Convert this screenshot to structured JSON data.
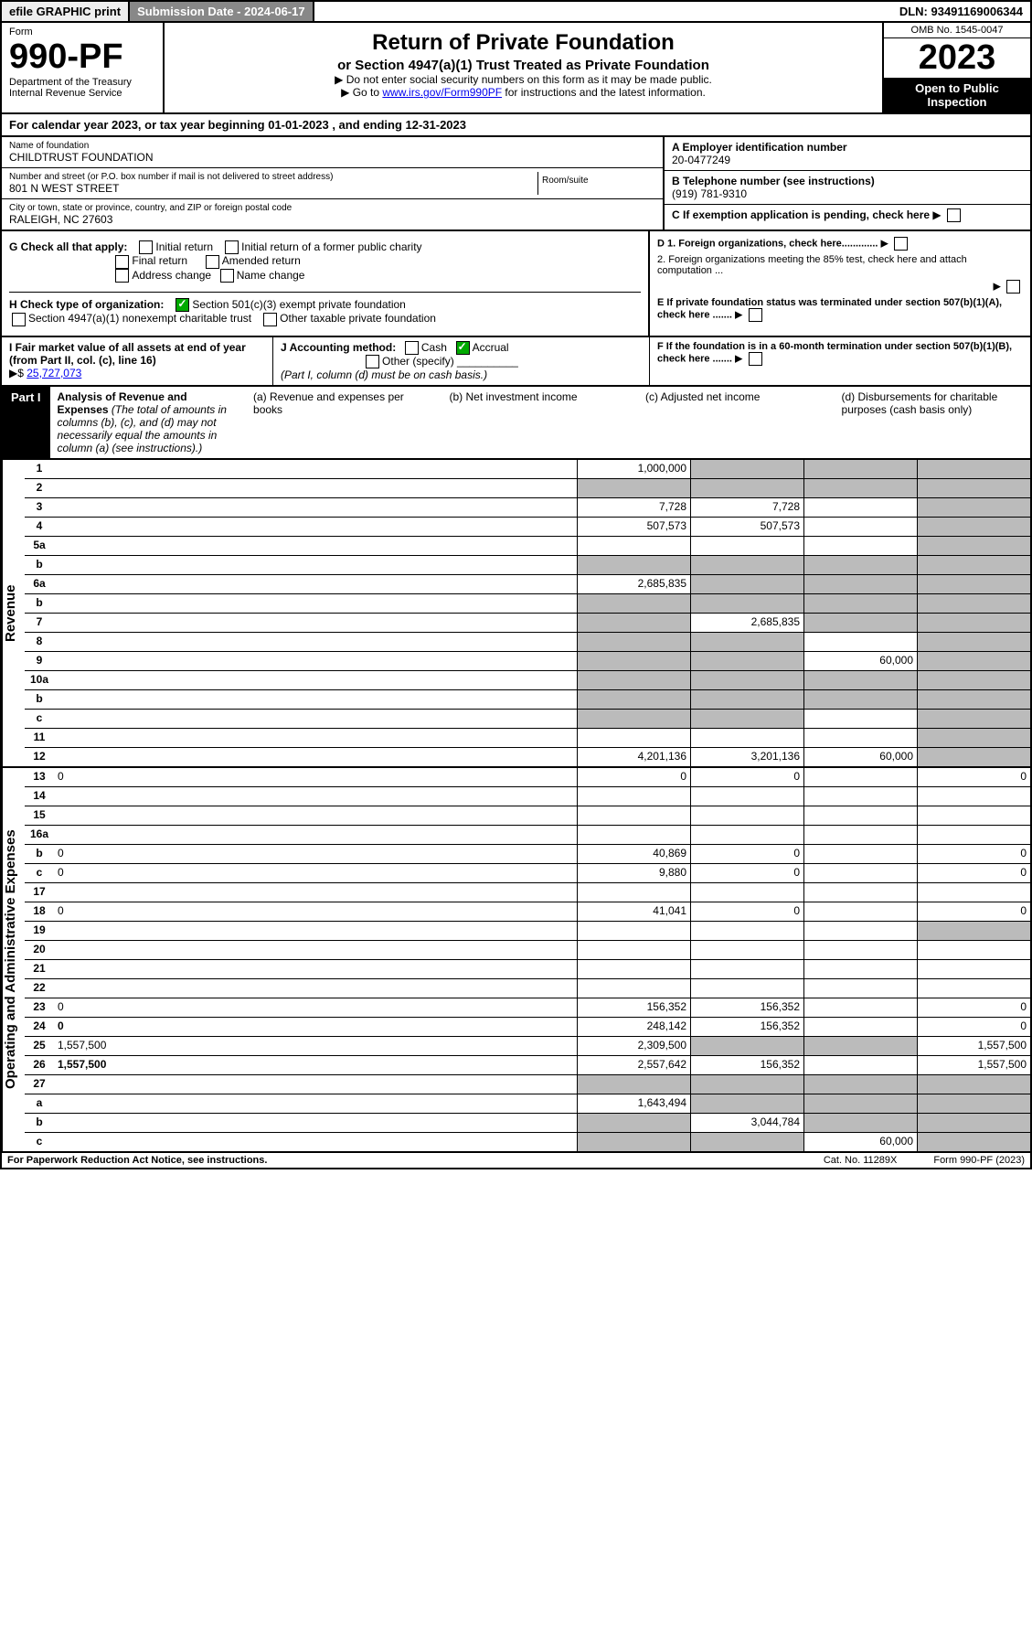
{
  "top": {
    "efile": "efile GRAPHIC print",
    "subdate": "Submission Date - 2024-06-17",
    "dln": "DLN: 93491169006344"
  },
  "header": {
    "form": "Form",
    "number": "990-PF",
    "dept": "Department of the Treasury",
    "irs": "Internal Revenue Service",
    "title": "Return of Private Foundation",
    "subtitle": "or Section 4947(a)(1) Trust Treated as Private Foundation",
    "note1": "▶ Do not enter social security numbers on this form as it may be made public.",
    "note2": "▶ Go to ",
    "link": "www.irs.gov/Form990PF",
    "note3": " for instructions and the latest information.",
    "omb": "OMB No. 1545-0047",
    "year": "2023",
    "open": "Open to Public Inspection"
  },
  "cal": "For calendar year 2023, or tax year beginning 01-01-2023                        , and ending 12-31-2023",
  "addr": {
    "name_lab": "Name of foundation",
    "name": "CHILDTRUST FOUNDATION",
    "street_lab": "Number and street (or P.O. box number if mail is not delivered to street address)",
    "street": "801 N WEST STREET",
    "room_lab": "Room/suite",
    "city_lab": "City or town, state or province, country, and ZIP or foreign postal code",
    "city": "RALEIGH, NC  27603"
  },
  "ein": {
    "a": "A Employer identification number",
    "a_val": "20-0477249",
    "b": "B Telephone number (see instructions)",
    "b_val": "(919) 781-9310",
    "c": "C If exemption application is pending, check here",
    "d1": "D 1. Foreign organizations, check here.............",
    "d2": "2. Foreign organizations meeting the 85% test, check here and attach computation ...",
    "e": "E  If private foundation status was terminated under section 507(b)(1)(A), check here .......",
    "f": "F  If the foundation is in a 60-month termination under section 507(b)(1)(B), check here ......."
  },
  "g": {
    "lab": "G Check all that apply:",
    "o1": "Initial return",
    "o2": "Initial return of a former public charity",
    "o3": "Final return",
    "o4": "Amended return",
    "o5": "Address change",
    "o6": "Name change"
  },
  "h": {
    "lab": "H Check type of organization:",
    "o1": "Section 501(c)(3) exempt private foundation",
    "o2": "Section 4947(a)(1) nonexempt charitable trust",
    "o3": "Other taxable private foundation"
  },
  "i": {
    "lab": "I Fair market value of all assets at end of year (from Part II, col. (c), line 16)",
    "arrow": "▶$",
    "val": "25,727,073"
  },
  "j": {
    "lab": "J Accounting method:",
    "o1": "Cash",
    "o2": "Accrual",
    "o3": "Other (specify)",
    "note": "(Part I, column (d) must be on cash basis.)"
  },
  "part1": {
    "lbl": "Part I",
    "title": "Analysis of Revenue and Expenses",
    "sub": " (The total of amounts in columns (b), (c), and (d) may not necessarily equal the amounts in column (a) (see instructions).)",
    "cols": {
      "a": "(a)   Revenue and expenses per books",
      "b": "(b)   Net investment income",
      "c": "(c)   Adjusted net income",
      "d": "(d)   Disbursements for charitable purposes (cash basis only)"
    }
  },
  "rev_rows": [
    {
      "n": "1",
      "d": "",
      "a": "1,000,000",
      "b": "",
      "c": "",
      "ga": false,
      "gb": true,
      "gc": true,
      "gd": true
    },
    {
      "n": "2",
      "d": "",
      "a": "",
      "b": "",
      "c": "",
      "ga": true,
      "gb": true,
      "gc": true,
      "gd": true
    },
    {
      "n": "3",
      "d": "",
      "a": "7,728",
      "b": "7,728",
      "c": "",
      "ga": false,
      "gb": false,
      "gc": false,
      "gd": true
    },
    {
      "n": "4",
      "d": "",
      "a": "507,573",
      "b": "507,573",
      "c": "",
      "ga": false,
      "gb": false,
      "gc": false,
      "gd": true
    },
    {
      "n": "5a",
      "d": "",
      "a": "",
      "b": "",
      "c": "",
      "ga": false,
      "gb": false,
      "gc": false,
      "gd": true
    },
    {
      "n": "b",
      "d": "",
      "a": "",
      "b": "",
      "c": "",
      "ga": true,
      "gb": true,
      "gc": true,
      "gd": true
    },
    {
      "n": "6a",
      "d": "",
      "a": "2,685,835",
      "b": "",
      "c": "",
      "ga": false,
      "gb": true,
      "gc": true,
      "gd": true
    },
    {
      "n": "b",
      "d": "",
      "a": "",
      "b": "",
      "c": "",
      "ga": true,
      "gb": true,
      "gc": true,
      "gd": true
    },
    {
      "n": "7",
      "d": "",
      "a": "",
      "b": "2,685,835",
      "c": "",
      "ga": true,
      "gb": false,
      "gc": true,
      "gd": true
    },
    {
      "n": "8",
      "d": "",
      "a": "",
      "b": "",
      "c": "",
      "ga": true,
      "gb": true,
      "gc": false,
      "gd": true
    },
    {
      "n": "9",
      "d": "",
      "a": "",
      "b": "",
      "c": "60,000",
      "ga": true,
      "gb": true,
      "gc": false,
      "gd": true
    },
    {
      "n": "10a",
      "d": "",
      "a": "",
      "b": "",
      "c": "",
      "ga": true,
      "gb": true,
      "gc": true,
      "gd": true
    },
    {
      "n": "b",
      "d": "",
      "a": "",
      "b": "",
      "c": "",
      "ga": true,
      "gb": true,
      "gc": true,
      "gd": true
    },
    {
      "n": "c",
      "d": "",
      "a": "",
      "b": "",
      "c": "",
      "ga": true,
      "gb": true,
      "gc": false,
      "gd": true
    },
    {
      "n": "11",
      "d": "",
      "a": "",
      "b": "",
      "c": "",
      "ga": false,
      "gb": false,
      "gc": false,
      "gd": true
    },
    {
      "n": "12",
      "d": "",
      "a": "4,201,136",
      "b": "3,201,136",
      "c": "60,000",
      "ga": false,
      "gb": false,
      "gc": false,
      "gd": true,
      "bold": true
    }
  ],
  "exp_rows": [
    {
      "n": "13",
      "d": "0",
      "a": "0",
      "b": "0",
      "c": ""
    },
    {
      "n": "14",
      "d": "",
      "a": "",
      "b": "",
      "c": ""
    },
    {
      "n": "15",
      "d": "",
      "a": "",
      "b": "",
      "c": ""
    },
    {
      "n": "16a",
      "d": "",
      "a": "",
      "b": "",
      "c": ""
    },
    {
      "n": "b",
      "d": "0",
      "a": "40,869",
      "b": "0",
      "c": ""
    },
    {
      "n": "c",
      "d": "0",
      "a": "9,880",
      "b": "0",
      "c": ""
    },
    {
      "n": "17",
      "d": "",
      "a": "",
      "b": "",
      "c": ""
    },
    {
      "n": "18",
      "d": "0",
      "a": "41,041",
      "b": "0",
      "c": ""
    },
    {
      "n": "19",
      "d": "",
      "a": "",
      "b": "",
      "c": "",
      "gd": true
    },
    {
      "n": "20",
      "d": "",
      "a": "",
      "b": "",
      "c": ""
    },
    {
      "n": "21",
      "d": "",
      "a": "",
      "b": "",
      "c": ""
    },
    {
      "n": "22",
      "d": "",
      "a": "",
      "b": "",
      "c": ""
    },
    {
      "n": "23",
      "d": "0",
      "a": "156,352",
      "b": "156,352",
      "c": ""
    },
    {
      "n": "24",
      "d": "0",
      "a": "248,142",
      "b": "156,352",
      "c": "",
      "bold": true
    },
    {
      "n": "25",
      "d": "1,557,500",
      "a": "2,309,500",
      "b": "",
      "c": "",
      "gb": true,
      "gc": true
    },
    {
      "n": "26",
      "d": "1,557,500",
      "a": "2,557,642",
      "b": "156,352",
      "c": "",
      "bold": true
    },
    {
      "n": "27",
      "d": "",
      "a": "",
      "b": "",
      "c": "",
      "ga": true,
      "gb": true,
      "gc": true,
      "gd": true
    },
    {
      "n": "a",
      "d": "",
      "a": "1,643,494",
      "b": "",
      "c": "",
      "bold": true,
      "gb": true,
      "gc": true,
      "gd": true
    },
    {
      "n": "b",
      "d": "",
      "a": "",
      "b": "3,044,784",
      "c": "",
      "bold": true,
      "ga": true,
      "gc": true,
      "gd": true
    },
    {
      "n": "c",
      "d": "",
      "a": "",
      "b": "",
      "c": "60,000",
      "bold": true,
      "ga": true,
      "gb": true,
      "gd": true
    }
  ],
  "rev_lbl": "Revenue",
  "exp_lbl": "Operating and Administrative Expenses",
  "ftr": {
    "l": "For Paperwork Reduction Act Notice, see instructions.",
    "c": "Cat. No. 11289X",
    "r": "Form 990-PF (2023)"
  }
}
